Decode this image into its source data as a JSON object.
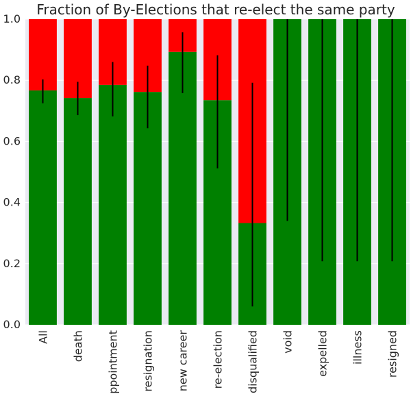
{
  "chart_data": {
    "type": "bar",
    "title": "Fraction of By-Elections that re-elect the same party",
    "xlabel": "",
    "ylabel": "",
    "ylim": [
      0,
      1
    ],
    "yticks": [
      "0.0",
      "0.2",
      "0.4",
      "0.6",
      "0.8",
      "1.0"
    ],
    "categories": [
      "All",
      "death",
      "appointment",
      "resignation",
      "new career",
      "re-election",
      "disqualified",
      "void",
      "expelled",
      "illness",
      "resigned"
    ],
    "stacked": true,
    "series": [
      {
        "values": [
          0.767,
          0.742,
          0.785,
          0.762,
          0.893,
          0.735,
          0.333,
          1.0,
          1.0,
          1.0,
          1.0
        ],
        "color": "#008000"
      },
      {
        "values": [
          0.233,
          0.258,
          0.215,
          0.238,
          0.107,
          0.265,
          0.667,
          0.0,
          0.0,
          0.0,
          0.0
        ],
        "color": "#ff0000"
      }
    ],
    "error_bars": {
      "low": [
        0.725,
        0.686,
        0.682,
        0.643,
        0.758,
        0.512,
        0.06,
        0.34,
        0.208,
        0.208,
        0.208
      ],
      "high": [
        0.803,
        0.795,
        0.86,
        0.848,
        0.957,
        0.882,
        0.792,
        1.0,
        1.0,
        1.0,
        1.0
      ],
      "color": "#000000"
    },
    "grid": true,
    "background": "#eaeaf2",
    "legend": "none"
  }
}
